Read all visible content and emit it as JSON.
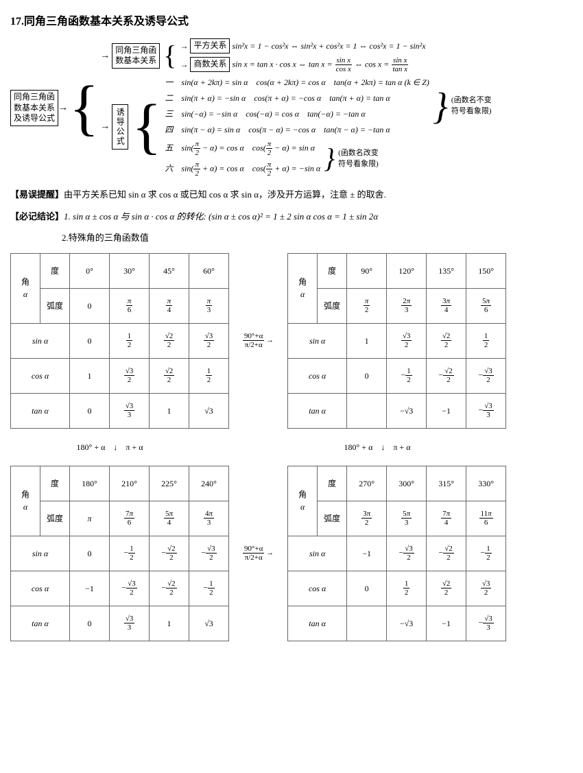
{
  "title": "17.同角三角函数基本关系及诱导公式",
  "mainBox": "同角三角函\n数基本关系\n及诱导公式",
  "sub1Box": "同角三角函\n数基本关系",
  "sub2Box": "诱导公式",
  "pfBox": "平方关系",
  "ssBox": "商数关系",
  "pfRel": "sin²x = 1 − cos²x ⇔ sin²x + cos²x = 1 ⇔ cos²x = 1 − sin²x",
  "ssRel": "sin x = tan x · cos x ⇔ tan x = ",
  "ssRel2": " ⇔ cos x = ",
  "ind1": "一　sin(α + 2kπ) = sin α　cos(α + 2kπ) = cos α　tan(α + 2kπ) = tan α (k ∈ Z)",
  "ind2": "二　sin(π + α) = −sin α　cos(π + α) = −cos α　tan(π + α) = tan α",
  "ind3": "三　sin(−α) = −sin α　cos(−α) = cos α　tan(−α) = −tan α",
  "ind4": "四　sin(π − α) = sin α　cos(π − α) = −cos α　tan(π − α) = −tan α",
  "ind5a": "五　sin(",
  "ind5b": " − α) = cos α　cos(",
  "ind5c": " − α) = sin α",
  "ind6a": "六　sin(",
  "ind6b": " + α) = cos α　cos(",
  "ind6c": " + α) = −sin α",
  "bubble1a": "函数名不变",
  "bubble1b": "符号看象限",
  "bubble2a": "函数名改变",
  "bubble2b": "符号看象限",
  "warn": "【易误提醒】",
  "warnText": "由平方关系已知 sin α 求 cos α 或已知 cos α 求 sin α，涉及开方运算，注意 ± 的取舍.",
  "conc": "【必记结论】",
  "concText": "1. sin α ± cos α 与 sin α · cos α 的转化: (sin α ± cos α)² = 1 ± 2 sin α cos α = 1 ± sin 2α",
  "conc2": "2.特殊角的三角函数值",
  "hAngle": "角",
  "hDeg": "度",
  "hRad": "弧度",
  "hSin": "sin α",
  "hCos": "cos α",
  "hTan": "tan α",
  "hA": "α",
  "t1": {
    "deg": [
      "0°",
      "30°",
      "45°",
      "60°"
    ],
    "rad": [
      "0",
      "π/6",
      "π/4",
      "π/3"
    ],
    "sin": [
      "0",
      "1/2",
      "√2/2",
      "√3/2"
    ],
    "cos": [
      "1",
      "√3/2",
      "√2/2",
      "1/2"
    ],
    "tan": [
      "0",
      "√3/3",
      "1",
      "√3"
    ]
  },
  "t2": {
    "deg": [
      "90°",
      "120°",
      "135°",
      "150°"
    ],
    "rad": [
      "π/2",
      "2π/3",
      "3π/4",
      "5π/6"
    ],
    "sin": [
      "1",
      "√3/2",
      "√2/2",
      "1/2"
    ],
    "cos": [
      "0",
      "-1/2",
      "-√2/2",
      "-√3/2"
    ],
    "tan": [
      "",
      "-√3",
      "-1",
      "-√3/3"
    ]
  },
  "t3": {
    "deg": [
      "180°",
      "210°",
      "225°",
      "240°"
    ],
    "rad": [
      "π",
      "7π/6",
      "5π/4",
      "4π/3"
    ],
    "sin": [
      "0",
      "-1/2",
      "-√2/2",
      "-√3/2"
    ],
    "cos": [
      "-1",
      "-√3/2",
      "-√2/2",
      "-1/2"
    ],
    "tan": [
      "0",
      "√3/3",
      "1",
      "√3"
    ]
  },
  "t4": {
    "deg": [
      "270°",
      "300°",
      "315°",
      "330°"
    ],
    "rad": [
      "3π/2",
      "5π/3",
      "7π/4",
      "11π/6"
    ],
    "sin": [
      "-1",
      "-√3/2",
      "-√2/2",
      "-1/2"
    ],
    "cos": [
      "0",
      "1/2",
      "√2/2",
      "√3/2"
    ],
    "tan": [
      "",
      "-√3",
      "-1",
      "-√3/3"
    ]
  },
  "arrH1": "90°+α",
  "arrH2": "π/2+α",
  "arrV": "180° + α　↓　π + α"
}
